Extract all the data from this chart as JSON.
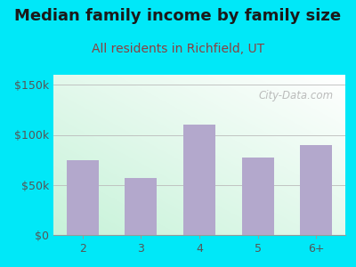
{
  "title": "Median family income by family size",
  "subtitle": "All residents in Richfield, UT",
  "categories": [
    "2",
    "3",
    "4",
    "5",
    "6+"
  ],
  "values": [
    75000,
    57000,
    110000,
    77000,
    90000
  ],
  "bar_color": "#b3a8cc",
  "background_outer": "#00e8f8",
  "title_color": "#1a1a1a",
  "subtitle_color": "#8b4040",
  "tick_label_color": "#555555",
  "ylim": [
    0,
    160000
  ],
  "yticks": [
    0,
    50000,
    100000,
    150000
  ],
  "ytick_labels": [
    "$0",
    "$50k",
    "$100k",
    "$150k"
  ],
  "watermark": "City-Data.com",
  "title_fontsize": 13,
  "subtitle_fontsize": 10,
  "tick_fontsize": 9
}
